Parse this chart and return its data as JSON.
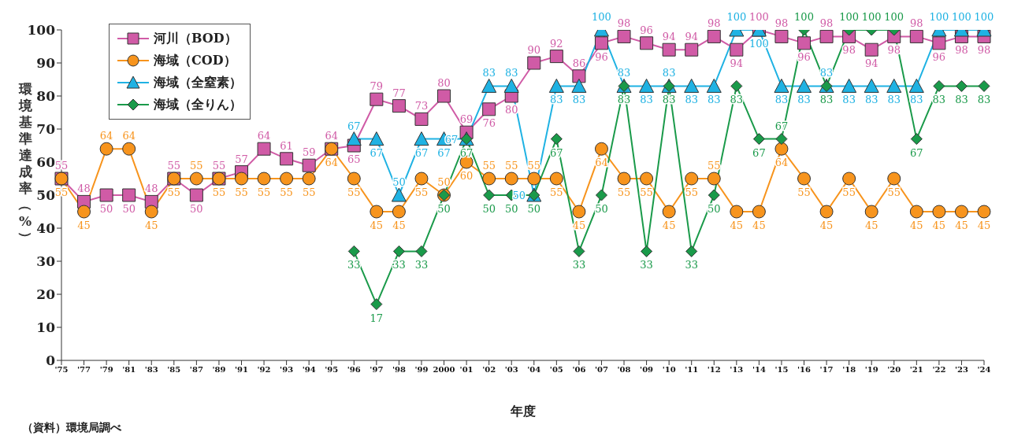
{
  "chart_data": {
    "type": "line",
    "xlabel": "年度",
    "ylabel": "環境基準達成率（%）",
    "annotations": [
      "（資料）環境局調べ"
    ],
    "categories": [
      "'75",
      "'77",
      "'79",
      "'81",
      "'83",
      "'85",
      "'87",
      "'89",
      "'91",
      "'92",
      "'93",
      "'94",
      "'95",
      "'96",
      "'97",
      "'98",
      "'99",
      "2000",
      "'01",
      "'02",
      "'03",
      "'04",
      "'05",
      "'06",
      "'07",
      "'08",
      "'09",
      "'10",
      "'11",
      "'12",
      "'13",
      "'14",
      "'15",
      "'16",
      "'17",
      "'18",
      "'19",
      "'20",
      "'21",
      "'22",
      "'23",
      "'24"
    ],
    "series": [
      {
        "name": "河川（BOD）",
        "color": "#d05ba6",
        "marker": "square",
        "values": [
          55,
          48,
          50,
          50,
          48,
          55,
          50,
          55,
          57,
          64,
          61,
          59,
          64,
          65,
          79,
          77,
          73,
          80,
          69,
          76,
          80,
          90,
          92,
          86,
          96,
          98,
          96,
          94,
          94,
          98,
          94,
          100,
          98,
          96,
          98,
          98,
          94,
          98,
          98,
          96,
          98,
          98
        ]
      },
      {
        "name": "海域（COD）",
        "color": "#f7941d",
        "marker": "circle",
        "values": [
          55,
          45,
          64,
          64,
          45,
          55,
          55,
          55,
          55,
          55,
          55,
          55,
          64,
          55,
          45,
          45,
          55,
          50,
          60,
          55,
          55,
          55,
          55,
          45,
          64,
          55,
          55,
          45,
          55,
          55,
          45,
          45,
          64,
          55,
          45,
          55,
          45,
          55,
          45,
          45,
          45,
          45
        ]
      },
      {
        "name": "海域（全窒素）",
        "color": "#1fb2e3",
        "marker": "triangle",
        "values": [
          null,
          null,
          null,
          null,
          null,
          null,
          null,
          null,
          null,
          null,
          null,
          null,
          null,
          67,
          67,
          50,
          67,
          67,
          67,
          83,
          83,
          50,
          83,
          83,
          100,
          83,
          83,
          83,
          83,
          83,
          100,
          100,
          83,
          83,
          83,
          83,
          83,
          83,
          83,
          100,
          100,
          100
        ]
      },
      {
        "name": "海域（全りん）",
        "color": "#1a9a4a",
        "marker": "diamond",
        "values": [
          null,
          null,
          null,
          null,
          null,
          null,
          null,
          null,
          null,
          null,
          null,
          null,
          null,
          33,
          17,
          33,
          33,
          50,
          67,
          50,
          50,
          50,
          67,
          33,
          50,
          83,
          33,
          83,
          33,
          50,
          83,
          67,
          67,
          100,
          83,
          100,
          100,
          100,
          67,
          83,
          83,
          83
        ]
      }
    ],
    "ylim": [
      0,
      100
    ],
    "yticks": [
      0,
      10,
      20,
      30,
      40,
      50,
      60,
      70,
      80,
      90,
      100
    ],
    "grid": false,
    "legend": "top left",
    "data_labels": true
  }
}
